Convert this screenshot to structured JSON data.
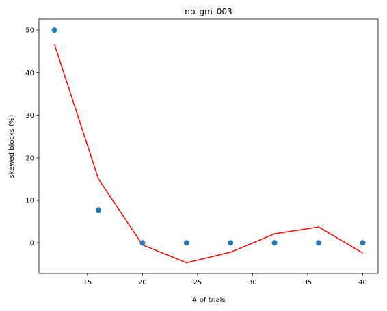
{
  "chart_data": {
    "type": "scatter",
    "title": "nb_gm_003",
    "xlabel": "# of trials",
    "ylabel": "skewed blocks (%)",
    "xlim": [
      10.6,
      41.4
    ],
    "ylim": [
      -7.2,
      52.6
    ],
    "xticks": [
      15,
      20,
      25,
      30,
      35,
      40
    ],
    "yticks": [
      0,
      10,
      20,
      30,
      40,
      50
    ],
    "grid": false,
    "series": [
      {
        "kind": "scatter",
        "color": "#1f77b4",
        "x": [
          12,
          16,
          20,
          24,
          28,
          32,
          36,
          40
        ],
        "y": [
          50,
          7.7,
          0,
          0,
          0,
          0,
          0,
          0
        ]
      },
      {
        "kind": "line",
        "color": "#ff0000",
        "x": [
          12,
          16,
          20,
          24,
          28,
          32,
          36,
          40
        ],
        "y": [
          46.7,
          15.0,
          -0.5,
          -4.7,
          -2.2,
          2.1,
          3.7,
          -2.4
        ]
      }
    ]
  }
}
